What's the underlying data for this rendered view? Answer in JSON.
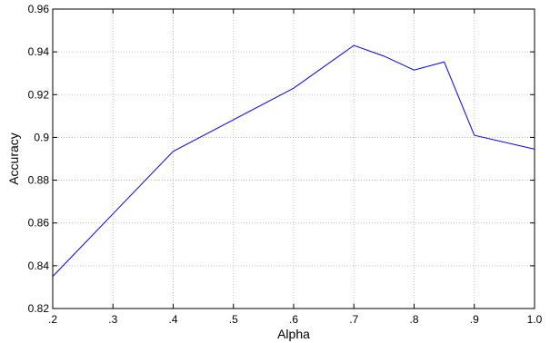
{
  "chart_data": {
    "type": "line",
    "title": "",
    "xlabel": "Alpha",
    "ylabel": "Accuracy",
    "xlim": [
      0.2,
      1.0
    ],
    "ylim": [
      0.82,
      0.96
    ],
    "grid": true,
    "line_color": "#0000ff",
    "x_ticks": [
      {
        "value": 0.2,
        "label": ".2"
      },
      {
        "value": 0.3,
        "label": ".3"
      },
      {
        "value": 0.4,
        "label": ".4"
      },
      {
        "value": 0.5,
        "label": ".5"
      },
      {
        "value": 0.6,
        "label": ".6"
      },
      {
        "value": 0.7,
        "label": ".7"
      },
      {
        "value": 0.8,
        "label": ".8"
      },
      {
        "value": 0.9,
        "label": ".9"
      },
      {
        "value": 1.0,
        "label": "1.0"
      }
    ],
    "y_ticks": [
      {
        "value": 0.82,
        "label": "0.82"
      },
      {
        "value": 0.84,
        "label": "0.84"
      },
      {
        "value": 0.86,
        "label": "0.86"
      },
      {
        "value": 0.88,
        "label": "0.88"
      },
      {
        "value": 0.9,
        "label": "0.9"
      },
      {
        "value": 0.92,
        "label": "0.92"
      },
      {
        "value": 0.94,
        "label": "0.94"
      },
      {
        "value": 0.96,
        "label": "0.96"
      }
    ],
    "series": [
      {
        "x": [
          0.2,
          0.4,
          0.6,
          0.7,
          0.75,
          0.8,
          0.85,
          0.9,
          1.0
        ],
        "y": [
          0.835,
          0.8935,
          0.923,
          0.943,
          0.938,
          0.9315,
          0.9353,
          0.901,
          0.8945
        ]
      }
    ]
  }
}
